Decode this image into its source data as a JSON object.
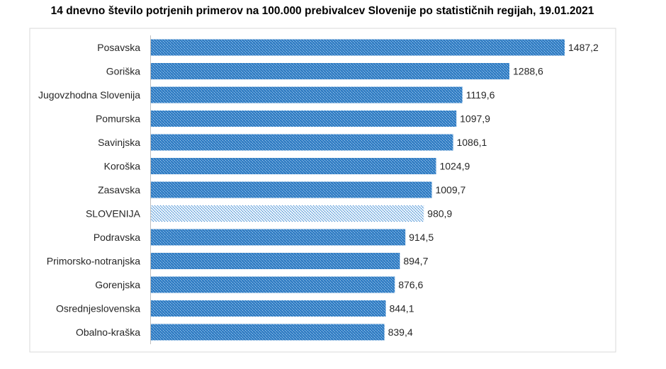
{
  "chart_data": {
    "type": "bar",
    "orientation": "horizontal",
    "title": "14 dnevno število potrjenih primerov na 100.000 prebivalcev Slovenije po statističnih regijah, 19.01.2021",
    "categories": [
      "Posavska",
      "Goriška",
      "Jugovzhodna Slovenija",
      "Pomurska",
      "Savinjska",
      "Koroška",
      "Zasavska",
      "SLOVENIJA",
      "Podravska",
      "Primorsko-notranjska",
      "Gorenjska",
      "Osrednjeslovenska",
      "Obalno-kraška"
    ],
    "values": [
      1487.2,
      1288.6,
      1119.6,
      1097.9,
      1086.1,
      1024.9,
      1009.7,
      980.9,
      914.5,
      894.7,
      876.6,
      844.1,
      839.4
    ],
    "data_labels": [
      "1487,2",
      "1288,6",
      "1119,6",
      "1097,9",
      "1086,1",
      "1024,9",
      "1009,7",
      "980,9",
      "914,5",
      "894,7",
      "876,6",
      "844,1",
      "839,4"
    ],
    "highlight_category": "SLOVENIJA",
    "colors": {
      "bar": "#2e75b6",
      "bar_dots": "#9dc3e6",
      "highlight": "#5b9bd5",
      "highlight_bg": "#deebf7"
    },
    "grid": false,
    "xlim": [
      0,
      1600
    ]
  }
}
